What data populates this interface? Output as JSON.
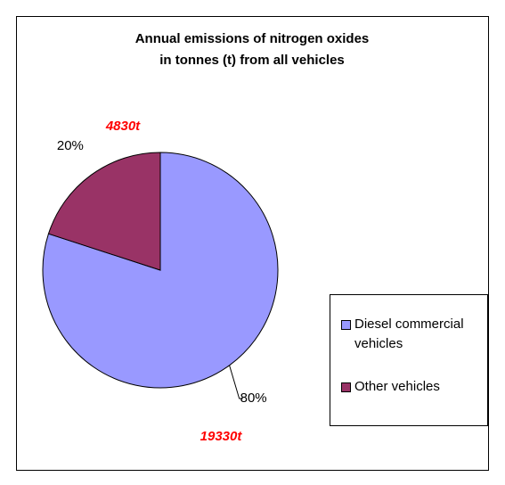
{
  "chart_data": {
    "type": "pie",
    "title": [
      "Annual emissions of nitrogen oxides",
      "in tonnes (t) from all vehicles"
    ],
    "categories": [
      "Diesel commercial vehicles",
      "Other vehicles"
    ],
    "values": [
      80,
      20
    ],
    "value_labels": [
      "80%",
      "20%"
    ],
    "colors": [
      "#9999ff",
      "#993366"
    ],
    "annotations": [
      "19330t",
      "4830t"
    ],
    "legend": "right"
  }
}
